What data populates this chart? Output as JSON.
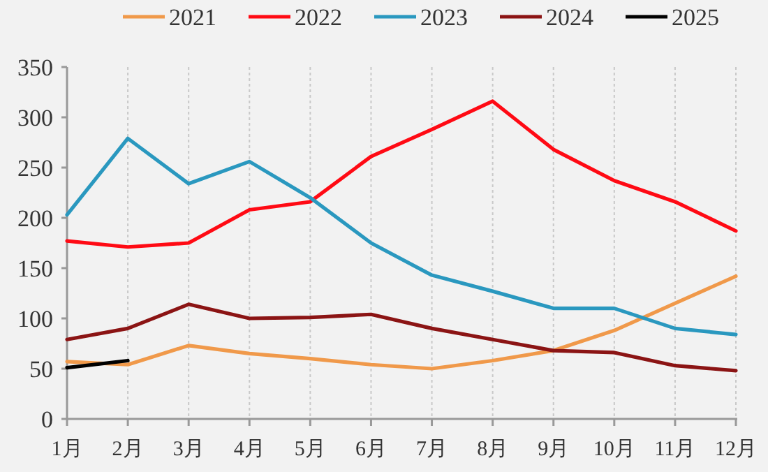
{
  "chart_data": {
    "type": "line",
    "categories": [
      "1月",
      "2月",
      "3月",
      "4月",
      "5月",
      "6月",
      "7月",
      "8月",
      "9月",
      "10月",
      "11月",
      "12月"
    ],
    "series": [
      {
        "name": "2021",
        "color": "#f0994a",
        "values": [
          57,
          54,
          73,
          65,
          60,
          54,
          50,
          58,
          68,
          88,
          115,
          142
        ]
      },
      {
        "name": "2022",
        "color": "#ff0a14",
        "values": [
          177,
          171,
          175,
          208,
          216,
          261,
          288,
          316,
          268,
          237,
          216,
          187
        ]
      },
      {
        "name": "2023",
        "color": "#2a98bf",
        "values": [
          203,
          279,
          234,
          256,
          220,
          175,
          143,
          127,
          110,
          110,
          90,
          84
        ]
      },
      {
        "name": "2024",
        "color": "#8b1414",
        "values": [
          79,
          90,
          114,
          100,
          101,
          104,
          90,
          79,
          68,
          66,
          53,
          48
        ]
      },
      {
        "name": "2025",
        "color": "#000000",
        "values": [
          51,
          58,
          null,
          null,
          null,
          null,
          null,
          null,
          null,
          null,
          null,
          null
        ]
      }
    ],
    "ylim": [
      0,
      350
    ],
    "yticks": [
      0,
      50,
      100,
      150,
      200,
      250,
      300,
      350
    ],
    "grid": "x",
    "legend": "top",
    "marker": "none",
    "line_style": "solid"
  }
}
